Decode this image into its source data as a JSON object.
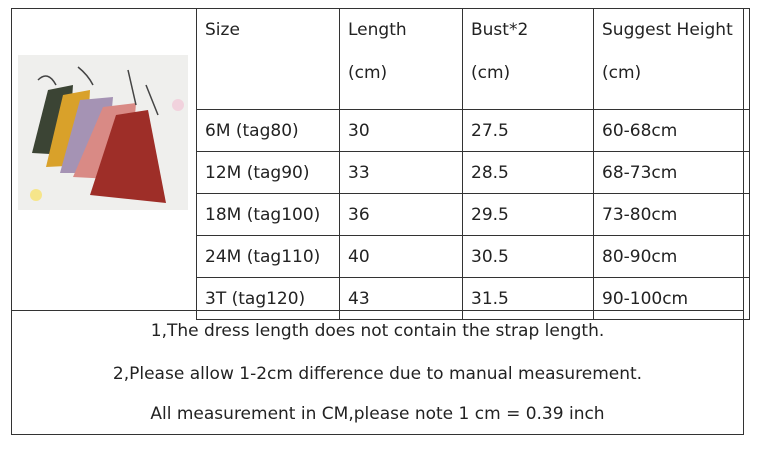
{
  "headers": [
    [
      "Size",
      ""
    ],
    [
      "Length",
      "(cm)"
    ],
    [
      "Bust*2",
      "(cm)"
    ],
    [
      "Suggest Height",
      "(cm)"
    ]
  ],
  "rows": [
    [
      "6M (tag80)",
      "30",
      "27.5",
      "60-68cm"
    ],
    [
      "12M (tag90)",
      "33",
      "28.5",
      "68-73cm"
    ],
    [
      "18M (tag100)",
      "36",
      "29.5",
      "73-80cm"
    ],
    [
      "24M (tag110)",
      "40",
      "30.5",
      "80-90cm"
    ],
    [
      "3T (tag120)",
      "43",
      "31.5",
      "90-100cm"
    ]
  ],
  "notes": [
    "1,The dress length does not contain the strap length.",
    "2,Please allow 1-2cm difference due to manual measurement.",
    "All measurement in CM,please note 1 cm = 0.39 inch"
  ],
  "dress_colors": [
    "#3b4434",
    "#d9a12a",
    "#a593b4",
    "#d98a85",
    "#9e2e28"
  ]
}
